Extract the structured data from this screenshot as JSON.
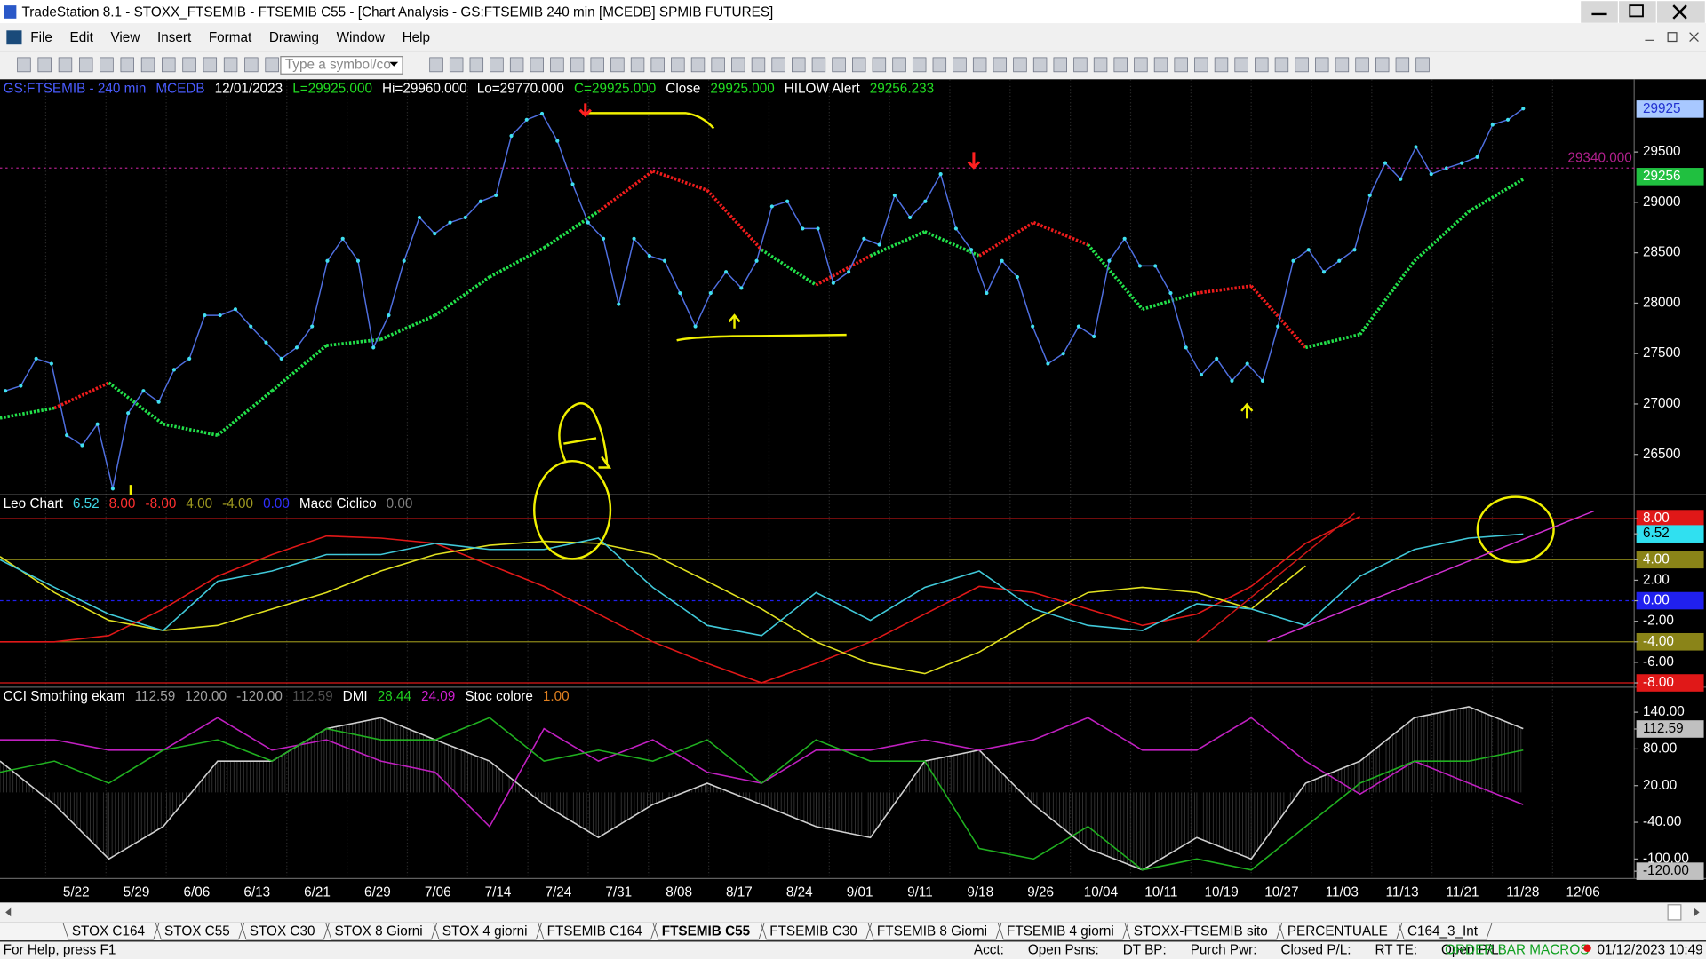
{
  "window": {
    "title": "TradeStation 8.1 - STOXX_FTSEMIB - FTSEMIB C55 - [Chart Analysis - GS:FTSEMIB  240 min  [MCEDB] SPMIB FUTURES]",
    "menu": [
      "File",
      "Edit",
      "View",
      "Insert",
      "Format",
      "Drawing",
      "Window",
      "Help"
    ],
    "symbol_placeholder": "Type a symbol/co"
  },
  "price_pane": {
    "header": [
      {
        "text": "GS:FTSEMIB - 240 min",
        "color": "#4a5cff"
      },
      {
        "text": "MCEDB",
        "color": "#4a5cff"
      },
      {
        "text": "12/01/2023",
        "color": "#ffffff"
      },
      {
        "text": "L=29925.000",
        "color": "#22dd22"
      },
      {
        "text": "Hi=29960.000",
        "color": "#ffffff"
      },
      {
        "text": "Lo=29770.000",
        "color": "#ffffff"
      },
      {
        "text": "C=29925.000",
        "color": "#22dd22"
      },
      {
        "text": "Close",
        "color": "#ffffff"
      },
      {
        "text": "29925.000",
        "color": "#22dd22"
      },
      {
        "text": "HILOW Alert",
        "color": "#ffffff"
      },
      {
        "text": "29256.233",
        "color": "#22dd22"
      }
    ],
    "ylim": [
      26100,
      30220
    ],
    "yticks": [
      26500,
      27000,
      27500,
      28000,
      28500,
      29000,
      29500
    ],
    "flags": [
      {
        "value": 29925,
        "label": "29925",
        "color": "#a8c8ff"
      },
      {
        "value": 29340,
        "label": "29340.000",
        "color": "#b0208c"
      },
      {
        "value": 29256,
        "label": "29256",
        "color": "#20c040"
      }
    ],
    "line_color": "#4f6fe0",
    "dot_color": "#40e0f0",
    "closes": [
      27130,
      27180,
      27450,
      27400,
      26690,
      26590,
      26800,
      26160,
      26910,
      27130,
      27020,
      27340,
      27450,
      27880,
      27880,
      27940,
      27770,
      27610,
      27450,
      27560,
      27770,
      28420,
      28640,
      28420,
      27560,
      27880,
      28420,
      28850,
      28690,
      28800,
      28850,
      29010,
      29070,
      29660,
      29820,
      29880,
      29610,
      29180,
      28800,
      28640,
      27990,
      28640,
      28470,
      28420,
      28100,
      27770,
      28100,
      28310,
      28150,
      28420,
      28960,
      29010,
      28740,
      28740,
      28200,
      28310,
      28640,
      28580,
      29070,
      28850,
      29010,
      29280,
      28740,
      28530,
      28100,
      28420,
      28260,
      27770,
      27400,
      27500,
      27770,
      27670,
      28420,
      28640,
      28370,
      28370,
      28100,
      27560,
      27290,
      27450,
      27230,
      27400,
      27230,
      27770,
      28420,
      28530,
      28310,
      28420,
      28530,
      29070,
      29390,
      29230,
      29550,
      29280,
      29340,
      29390,
      29450,
      29770,
      29820,
      29930
    ],
    "hilow": [
      26860,
      26960,
      27210,
      26800,
      26690,
      27130,
      27580,
      27640,
      27880,
      28260,
      28550,
      28910,
      29310,
      29120,
      28530,
      28180,
      28470,
      28710,
      28470,
      28800,
      28580,
      27940,
      28100,
      28170,
      27560,
      27690,
      28420,
      28910,
      29230
    ],
    "hilow_up_color": "#22e04a",
    "hilow_down_color": "#ee1c1c"
  },
  "leo_pane": {
    "header": [
      {
        "text": "Leo Chart",
        "color": "#ffffff"
      },
      {
        "text": "6.52",
        "color": "#40d8e8"
      },
      {
        "text": "8.00",
        "color": "#ff3030"
      },
      {
        "text": "-8.00",
        "color": "#ff3030"
      },
      {
        "text": "4.00",
        "color": "#a09a20"
      },
      {
        "text": "-4.00",
        "color": "#a09a20"
      },
      {
        "text": "0.00",
        "color": "#3030ff"
      },
      {
        "text": "Macd Ciclico",
        "color": "#ffffff"
      },
      {
        "text": "0.00",
        "color": "#808080"
      }
    ],
    "ylim": [
      -8.42,
      10.33
    ],
    "yticks": [
      {
        "value": 8,
        "label": "8.00"
      },
      {
        "value": 6.52,
        "label": "6.52"
      },
      {
        "value": 4,
        "label": "4.00"
      },
      {
        "value": 2,
        "label": "2.00"
      },
      {
        "value": 0,
        "label": "0.00"
      },
      {
        "value": -2,
        "label": "-2.00"
      },
      {
        "value": -4,
        "label": "-4.00"
      },
      {
        "value": -6,
        "label": "-6.00"
      },
      {
        "value": -8,
        "label": "-8.00"
      }
    ],
    "tick_colors": [
      "#e01818",
      "#30e0f0",
      "#8a8418",
      null,
      "#2020ee",
      null,
      "#8a8418",
      null,
      "#e01818"
    ],
    "lines": [
      {
        "color": "#e01818",
        "values": [
          -4.0,
          -4.0,
          -3.4,
          -0.8,
          2.4,
          4.5,
          6.3,
          6.1,
          5.6,
          3.5,
          1.4,
          -1.3,
          -4.0,
          -6.1,
          -8.0,
          -6.1,
          -4.0,
          -1.3,
          1.4,
          0.8,
          -0.8,
          -2.4,
          -1.3,
          1.4,
          5.6,
          8.2
        ]
      },
      {
        "color": "#e0e020",
        "values": [
          4.3,
          0.8,
          -1.9,
          -2.9,
          -2.4,
          -0.8,
          0.8,
          2.9,
          4.5,
          5.4,
          5.8,
          5.6,
          4.5,
          1.9,
          -0.8,
          -4.0,
          -6.1,
          -7.1,
          -5.0,
          -1.9,
          0.8,
          1.3,
          0.8,
          -0.8,
          3.4
        ]
      },
      {
        "color": "#40c8d8",
        "values": [
          4.0,
          1.3,
          -1.3,
          -2.9,
          1.9,
          2.9,
          4.5,
          4.5,
          5.6,
          5.0,
          5.0,
          6.1,
          1.3,
          -2.4,
          -3.4,
          0.8,
          -1.9,
          1.3,
          2.9,
          -0.8,
          -2.4,
          -2.9,
          -0.3,
          -0.8,
          -2.4,
          2.4,
          5.0,
          6.1,
          6.5
        ]
      }
    ]
  },
  "cci_pane": {
    "header": [
      {
        "text": "CCI Smothing ekam",
        "color": "#ffffff"
      },
      {
        "text": "112.59",
        "color": "#a0a0a0"
      },
      {
        "text": "120.00",
        "color": "#a0a0a0"
      },
      {
        "text": "-120.00",
        "color": "#a0a0a0"
      },
      {
        "text": "112.59",
        "color": "#505050"
      },
      {
        "text": "DMI",
        "color": "#ffffff"
      },
      {
        "text": "28.44",
        "color": "#20d020"
      },
      {
        "text": "24.09",
        "color": "#d020d0"
      },
      {
        "text": "Stoc colore",
        "color": "#ffffff"
      },
      {
        "text": "1.00",
        "color": "#e08020"
      }
    ],
    "ylim": [
      -132,
      181
    ],
    "yticks": [
      {
        "value": 140,
        "label": "140.00"
      },
      {
        "value": 112.59,
        "label": "112.59"
      },
      {
        "value": 80,
        "label": "80.00"
      },
      {
        "value": 20,
        "label": "20.00"
      },
      {
        "value": -40,
        "label": "-40.00"
      },
      {
        "value": -100,
        "label": "-100.00"
      },
      {
        "value": -120,
        "label": "-120.00"
      }
    ],
    "tick_colors": [
      null,
      "#c0c0c0",
      null,
      null,
      null,
      null,
      "#c0c0c0"
    ],
    "lines": [
      {
        "color": "#d0d0d0",
        "values": [
          60,
          -11,
          -100,
          -47,
          60,
          60,
          113,
          131,
          95,
          60,
          -11,
          -65,
          -11,
          24,
          -11,
          -47,
          -65,
          60,
          78,
          -11,
          -83,
          -118,
          -65,
          -100,
          24,
          60,
          131,
          149,
          113
        ]
      },
      {
        "color": "#c020c0",
        "values": [
          95,
          95,
          78,
          78,
          131,
          78,
          95,
          60,
          42,
          -47,
          113,
          60,
          95,
          42,
          24,
          78,
          78,
          95,
          78,
          95,
          131,
          78,
          78,
          131,
          60,
          6,
          60,
          24,
          -11
        ]
      },
      {
        "color": "#20b020",
        "values": [
          42,
          60,
          24,
          78,
          95,
          60,
          113,
          95,
          95,
          131,
          60,
          78,
          60,
          95,
          24,
          95,
          60,
          60,
          -83,
          -100,
          -47,
          -118,
          -100,
          -118,
          -47,
          24,
          60,
          60,
          78
        ]
      }
    ]
  },
  "dates": [
    "5/22",
    "5/29",
    "6/06",
    "6/13",
    "6/21",
    "6/29",
    "7/06",
    "7/14",
    "7/24",
    "7/31",
    "8/08",
    "8/17",
    "8/24",
    "9/01",
    "9/11",
    "9/18",
    "9/26",
    "10/04",
    "10/11",
    "10/19",
    "10/27",
    "11/03",
    "11/13",
    "11/21",
    "11/28",
    "12/06"
  ],
  "tabs": [
    "STOX C164",
    "STOX C55",
    "STOX  C30",
    "STOX  8 Giorni",
    "STOX 4 giorni",
    "FTSEMIB C164",
    "FTSEMIB C55",
    "FTSEMIB C30",
    "FTSEMIB  8 Giorni",
    "FTSEMIB  4 giorni",
    "STOXX-FTSEMIB sito",
    "PERCENTUALE",
    "C164_3_Int"
  ],
  "status": {
    "help": "For Help, press F1",
    "fields": [
      "Acct:",
      "Open Psns:",
      "DT BP:",
      "Purch Pwr:",
      "Closed P/L:",
      "RT TE:",
      "Open P/L:"
    ],
    "macros": "ORDER BAR MACROS",
    "clock": "01/12/2023 10:49"
  }
}
